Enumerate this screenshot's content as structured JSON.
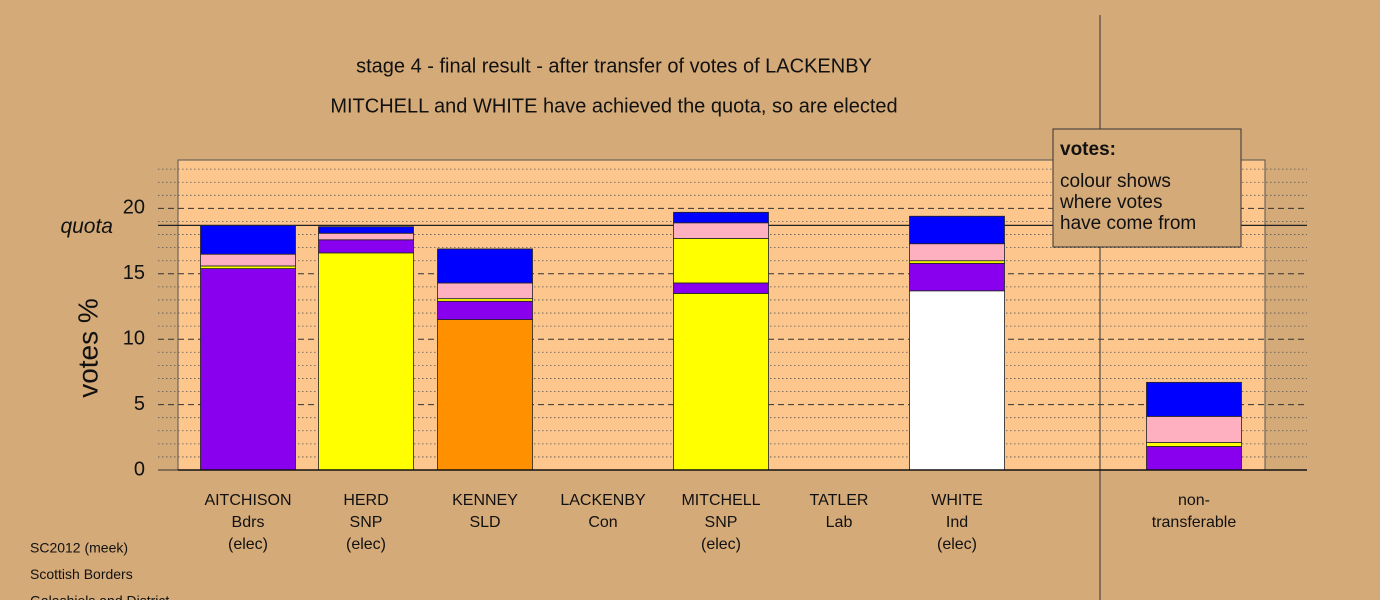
{
  "chart_data": {
    "type": "stacked_bar",
    "title": "stage 4 - final result - after transfer of votes of LACKENBY",
    "subtitle": "MITCHELL and WHITE have achieved the quota, so are elected",
    "y_label": "votes %",
    "ylim": [
      0,
      23.7
    ],
    "yticks": [
      0,
      5,
      10,
      15,
      20
    ],
    "minor_yticks": [
      1,
      2,
      3,
      4,
      6,
      7,
      8,
      9,
      11,
      12,
      13,
      14,
      16,
      17,
      18,
      19,
      21,
      22,
      23
    ],
    "grid": true,
    "quota": {
      "label": "quota",
      "value": 18.7
    },
    "categories": [
      [
        "AITCHISON",
        "Bdrs",
        "(elec)"
      ],
      [
        "HERD",
        "SNP",
        "(elec)"
      ],
      [
        "KENNEY",
        "SLD"
      ],
      [
        "LACKENBY",
        "Con"
      ],
      [
        "MITCHELL",
        "SNP",
        "(elec)"
      ],
      [
        "TATLER",
        "Lab"
      ],
      [
        "WHITE",
        "Ind",
        "(elec)"
      ],
      [
        "non-",
        "transferable"
      ]
    ],
    "stacks": [
      [
        {
          "color": "#8800ee",
          "value": 15.4
        },
        {
          "color": "#ffff00",
          "value": 0.2
        },
        {
          "color": "#ffb0c0",
          "value": 0.9
        },
        {
          "color": "#0000ff",
          "value": 2.2
        }
      ],
      [
        {
          "color": "#ffff00",
          "value": 16.6
        },
        {
          "color": "#8800ee",
          "value": 1.0
        },
        {
          "color": "#ffb0c0",
          "value": 0.5
        },
        {
          "color": "#0000ff",
          "value": 0.5
        }
      ],
      [
        {
          "color": "#ff9100",
          "value": 11.5
        },
        {
          "color": "#8800ee",
          "value": 1.4
        },
        {
          "color": "#ffff00",
          "value": 0.2
        },
        {
          "color": "#ffb0c0",
          "value": 1.2
        },
        {
          "color": "#0000ff",
          "value": 2.6
        }
      ],
      [],
      [
        {
          "color": "#ffff00",
          "value": 13.5
        },
        {
          "color": "#8800ee",
          "value": 0.8
        },
        {
          "color": "#ffff00",
          "value": 3.4
        },
        {
          "color": "#ffb0c0",
          "value": 1.2
        },
        {
          "color": "#0000ff",
          "value": 0.8
        }
      ],
      [],
      [
        {
          "color": "#ffffff",
          "value": 13.7
        },
        {
          "color": "#8800ee",
          "value": 2.1
        },
        {
          "color": "#ffff00",
          "value": 0.2
        },
        {
          "color": "#ffb0c0",
          "value": 1.3
        },
        {
          "color": "#0000ff",
          "value": 2.1
        }
      ],
      [
        {
          "color": "#8800ee",
          "value": 1.8
        },
        {
          "color": "#ffff00",
          "value": 0.3
        },
        {
          "color": "#ffb0c0",
          "value": 2.0
        },
        {
          "color": "#0000ff",
          "value": 2.6
        }
      ]
    ],
    "legend": {
      "title": "votes:",
      "lines": [
        "colour shows",
        "where votes",
        "have come from"
      ]
    },
    "footer": [
      "SC2012 (meek)",
      "Scottish Borders",
      "Galashiels and District"
    ]
  }
}
